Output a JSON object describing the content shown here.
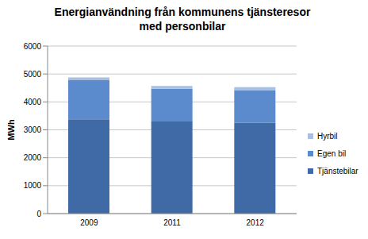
{
  "chart_data": {
    "type": "bar",
    "title": "Energianvändning från kommunens tjänsteresor med personbilar",
    "y_label": "MWh",
    "categories": [
      "2009",
      "2011",
      "2012"
    ],
    "series": [
      {
        "name": "Tjänstebilar",
        "color": "#3f6aa6",
        "values": [
          3380,
          3300,
          3250
        ]
      },
      {
        "name": "Egen bil",
        "color": "#5b8bcc",
        "values": [
          1400,
          1170,
          1170
        ]
      },
      {
        "name": "Hyrbil",
        "color": "#a9c0e0",
        "values": [
          100,
          100,
          110
        ]
      }
    ],
    "stacked": true,
    "ylim": [
      0,
      6000
    ],
    "yticks": [
      0,
      1000,
      2000,
      3000,
      4000,
      5000,
      6000
    ],
    "grid": true,
    "legend": "right"
  }
}
